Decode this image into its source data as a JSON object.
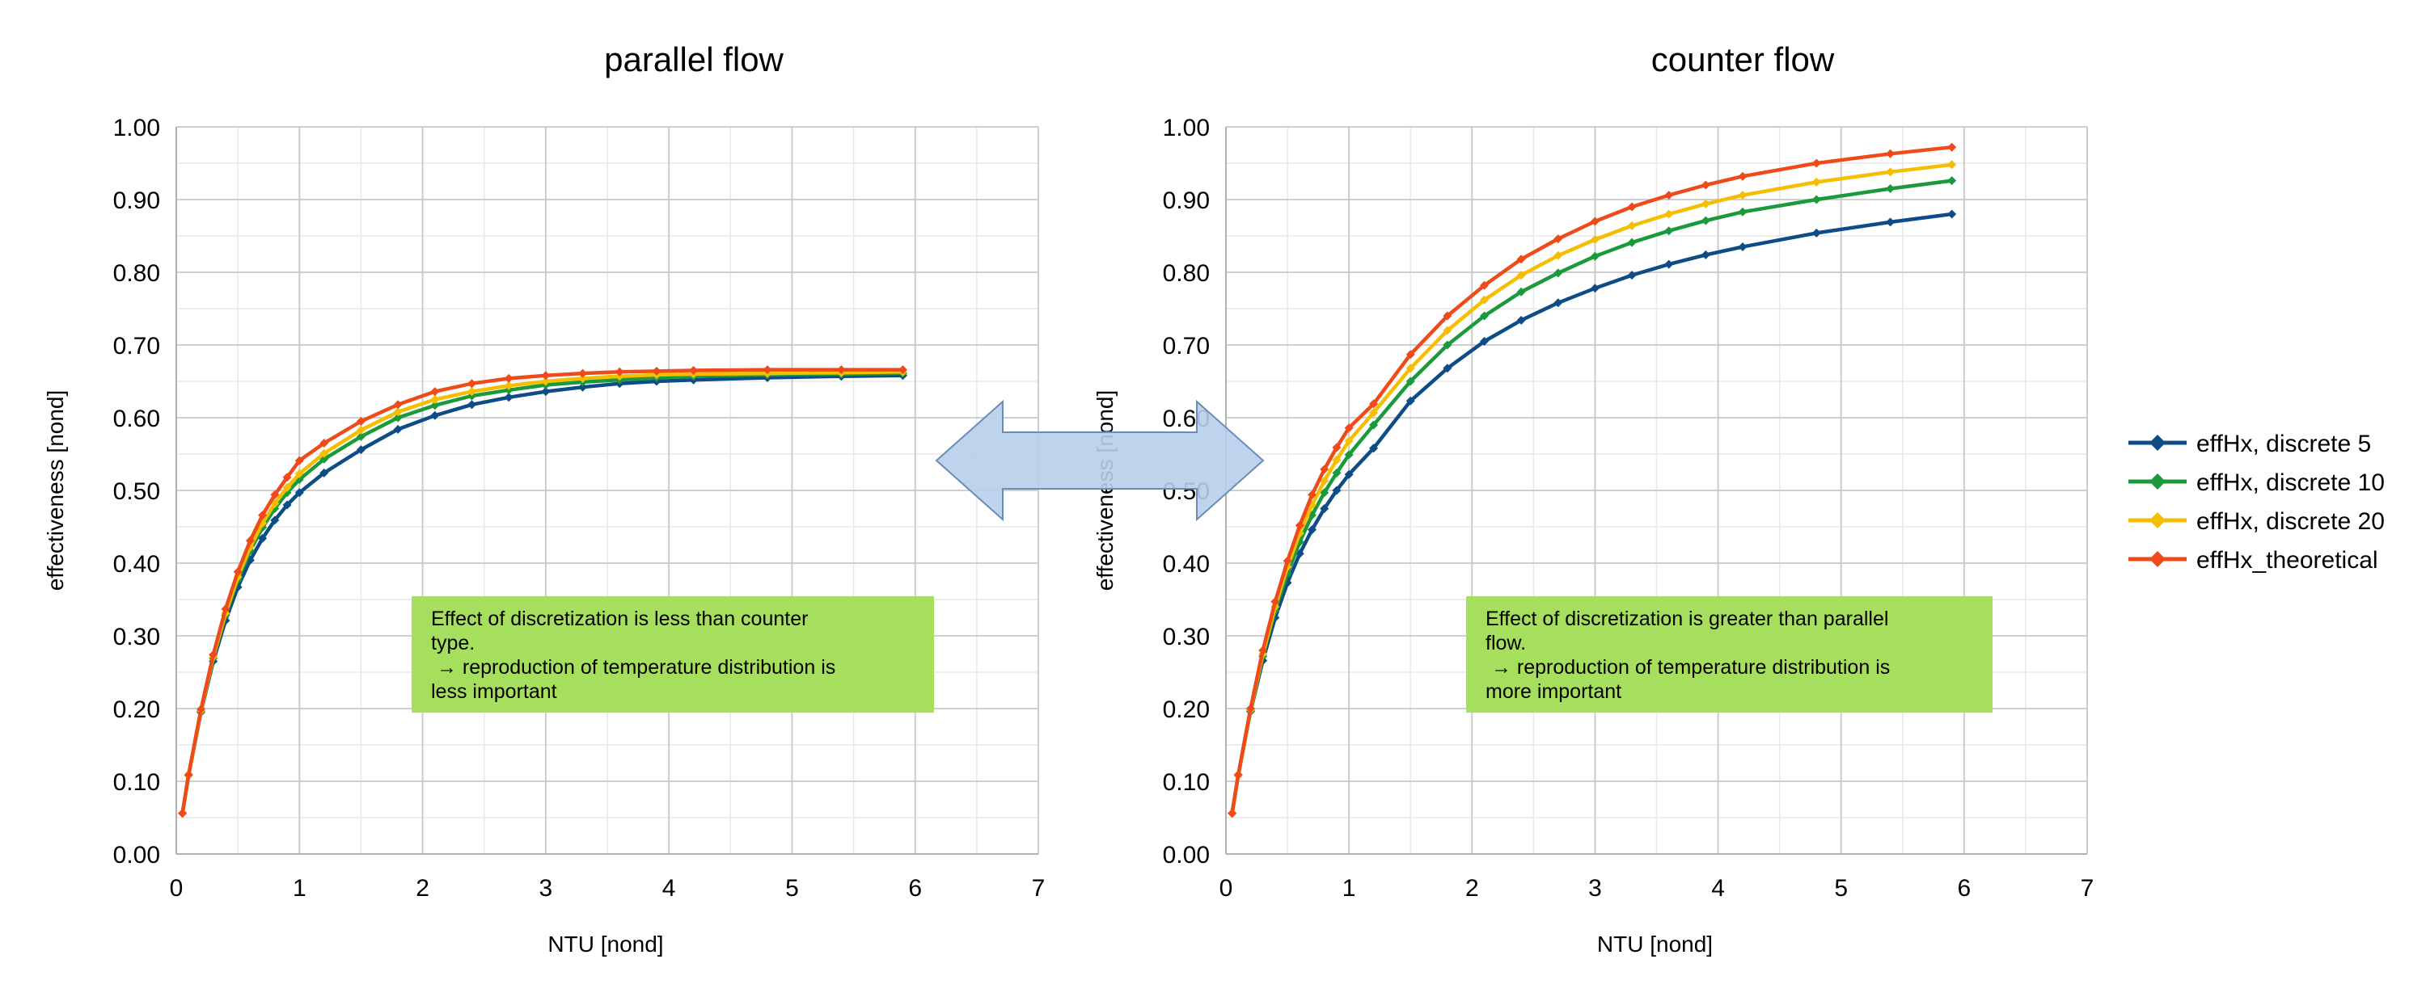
{
  "chart_data": [
    {
      "type": "line",
      "title": "parallel flow",
      "xlabel": "NTU [nond]",
      "ylabel": "effectiveness [nond]",
      "xlim": [
        0,
        7
      ],
      "ylim": [
        0,
        1
      ],
      "x_ticks": [
        "0",
        "1",
        "2",
        "3",
        "4",
        "5",
        "6",
        "7"
      ],
      "y_ticks": [
        "0.00",
        "0.10",
        "0.20",
        "0.30",
        "0.40",
        "0.50",
        "0.60",
        "0.70",
        "0.80",
        "0.90",
        "1.00"
      ],
      "grid": true,
      "annotation": [
        "Effect of discretization is less than counter",
        "type.",
        " → reproduction of temperature distribution is",
        "less important"
      ],
      "series": [
        {
          "name": "effHx, discrete 5",
          "color": "#0E4C87",
          "x": [
            0.05,
            0.1,
            0.2,
            0.3,
            0.4,
            0.5,
            0.6,
            0.7,
            0.8,
            0.9,
            1.0,
            1.2,
            1.5,
            1.8,
            2.1,
            2.4,
            2.7,
            3.0,
            3.3,
            3.6,
            3.9,
            4.2,
            4.8,
            5.4,
            5.9
          ],
          "y": [
            0.056,
            0.108,
            0.195,
            0.265,
            0.321,
            0.367,
            0.404,
            0.434,
            0.459,
            0.48,
            0.497,
            0.524,
            0.556,
            0.584,
            0.603,
            0.618,
            0.628,
            0.636,
            0.642,
            0.647,
            0.65,
            0.652,
            0.655,
            0.657,
            0.658
          ]
        },
        {
          "name": "effHx, discrete 10",
          "color": "#1A9A3A",
          "x": [
            0.05,
            0.1,
            0.2,
            0.3,
            0.4,
            0.5,
            0.6,
            0.7,
            0.8,
            0.9,
            1.0,
            1.2,
            1.5,
            1.8,
            2.1,
            2.4,
            2.7,
            3.0,
            3.3,
            3.6,
            3.9,
            4.2,
            4.8,
            5.4,
            5.9
          ],
          "y": [
            0.056,
            0.108,
            0.196,
            0.269,
            0.328,
            0.377,
            0.417,
            0.449,
            0.475,
            0.497,
            0.515,
            0.543,
            0.574,
            0.6,
            0.617,
            0.63,
            0.638,
            0.645,
            0.649,
            0.652,
            0.655,
            0.657,
            0.659,
            0.66,
            0.661
          ]
        },
        {
          "name": "effHx, discrete 20",
          "color": "#F5BE00",
          "x": [
            0.05,
            0.1,
            0.2,
            0.3,
            0.4,
            0.5,
            0.6,
            0.7,
            0.8,
            0.9,
            1.0,
            1.2,
            1.5,
            1.8,
            2.1,
            2.4,
            2.7,
            3.0,
            3.3,
            3.6,
            3.9,
            4.2,
            4.8,
            5.4,
            5.9
          ],
          "y": [
            0.056,
            0.108,
            0.197,
            0.271,
            0.331,
            0.381,
            0.422,
            0.455,
            0.482,
            0.504,
            0.523,
            0.551,
            0.583,
            0.608,
            0.625,
            0.636,
            0.644,
            0.65,
            0.654,
            0.657,
            0.659,
            0.66,
            0.661,
            0.662,
            0.663
          ]
        },
        {
          "name": "effHx_theoretical",
          "color": "#EE4A1A",
          "x": [
            0.05,
            0.1,
            0.2,
            0.3,
            0.4,
            0.5,
            0.6,
            0.7,
            0.8,
            0.9,
            1.0,
            1.2,
            1.5,
            1.8,
            2.1,
            2.4,
            2.7,
            3.0,
            3.3,
            3.6,
            3.9,
            4.2,
            4.8,
            5.4,
            5.9
          ],
          "y": [
            0.056,
            0.109,
            0.199,
            0.274,
            0.337,
            0.388,
            0.431,
            0.466,
            0.494,
            0.518,
            0.541,
            0.565,
            0.595,
            0.618,
            0.636,
            0.647,
            0.654,
            0.658,
            0.661,
            0.663,
            0.664,
            0.665,
            0.666,
            0.666,
            0.666
          ]
        }
      ]
    },
    {
      "type": "line",
      "title": "counter flow",
      "xlabel": "NTU [nond]",
      "ylabel": "effectiveness [nond]",
      "xlim": [
        0,
        7
      ],
      "ylim": [
        0,
        1
      ],
      "x_ticks": [
        "0",
        "1",
        "2",
        "3",
        "4",
        "5",
        "6",
        "7"
      ],
      "y_ticks": [
        "0.00",
        "0.10",
        "0.20",
        "0.30",
        "0.40",
        "0.50",
        "0.60",
        "0.70",
        "0.80",
        "0.90",
        "1.00"
      ],
      "grid": true,
      "annotation": [
        "Effect of discretization is greater than parallel",
        "flow.",
        " → reproduction of temperature distribution is",
        "more important"
      ],
      "series": [
        {
          "name": "effHx, discrete 5",
          "color": "#0E4C87",
          "x": [
            0.05,
            0.1,
            0.2,
            0.3,
            0.4,
            0.5,
            0.6,
            0.7,
            0.8,
            0.9,
            1.0,
            1.2,
            1.5,
            1.8,
            2.1,
            2.4,
            2.7,
            3.0,
            3.3,
            3.6,
            3.9,
            4.2,
            4.8,
            5.4,
            5.9
          ],
          "y": [
            0.056,
            0.108,
            0.196,
            0.266,
            0.325,
            0.373,
            0.413,
            0.446,
            0.475,
            0.5,
            0.522,
            0.558,
            0.623,
            0.668,
            0.705,
            0.734,
            0.758,
            0.778,
            0.796,
            0.811,
            0.824,
            0.835,
            0.854,
            0.869,
            0.88
          ]
        },
        {
          "name": "effHx, discrete 10",
          "color": "#1A9A3A",
          "x": [
            0.05,
            0.1,
            0.2,
            0.3,
            0.4,
            0.5,
            0.6,
            0.7,
            0.8,
            0.9,
            1.0,
            1.2,
            1.5,
            1.8,
            2.1,
            2.4,
            2.7,
            3.0,
            3.3,
            3.6,
            3.9,
            4.2,
            4.8,
            5.4,
            5.9
          ],
          "y": [
            0.056,
            0.108,
            0.197,
            0.272,
            0.335,
            0.386,
            0.429,
            0.466,
            0.497,
            0.524,
            0.549,
            0.59,
            0.65,
            0.7,
            0.74,
            0.773,
            0.799,
            0.822,
            0.841,
            0.857,
            0.871,
            0.883,
            0.9,
            0.915,
            0.926
          ]
        },
        {
          "name": "effHx, discrete 20",
          "color": "#F5BE00",
          "x": [
            0.05,
            0.1,
            0.2,
            0.3,
            0.4,
            0.5,
            0.6,
            0.7,
            0.8,
            0.9,
            1.0,
            1.2,
            1.5,
            1.8,
            2.1,
            2.4,
            2.7,
            3.0,
            3.3,
            3.6,
            3.9,
            4.2,
            4.8,
            5.4,
            5.9
          ],
          "y": [
            0.056,
            0.108,
            0.198,
            0.275,
            0.34,
            0.395,
            0.441,
            0.48,
            0.513,
            0.542,
            0.568,
            0.607,
            0.668,
            0.72,
            0.762,
            0.796,
            0.823,
            0.845,
            0.864,
            0.88,
            0.894,
            0.906,
            0.924,
            0.938,
            0.948
          ]
        },
        {
          "name": "effHx_theoretical",
          "color": "#EE4A1A",
          "x": [
            0.05,
            0.1,
            0.2,
            0.3,
            0.4,
            0.5,
            0.6,
            0.7,
            0.8,
            0.9,
            1.0,
            1.2,
            1.5,
            1.8,
            2.1,
            2.4,
            2.7,
            3.0,
            3.3,
            3.6,
            3.9,
            4.2,
            4.8,
            5.4,
            5.9
          ],
          "y": [
            0.056,
            0.109,
            0.2,
            0.28,
            0.347,
            0.403,
            0.452,
            0.494,
            0.529,
            0.559,
            0.586,
            0.619,
            0.687,
            0.74,
            0.782,
            0.818,
            0.846,
            0.87,
            0.89,
            0.906,
            0.92,
            0.932,
            0.95,
            0.963,
            0.972
          ]
        }
      ]
    }
  ],
  "legend": {
    "placement": "right",
    "items": [
      {
        "label": "effHx, discrete 5",
        "color": "#0E4C87"
      },
      {
        "label": "effHx, discrete 10",
        "color": "#1A9A3A"
      },
      {
        "label": "effHx, discrete 20",
        "color": "#F5BE00"
      },
      {
        "label": "effHx_theoretical",
        "color": "#EE4A1A"
      }
    ]
  },
  "colors": {
    "annotation_fill": "#A6DE5E",
    "arrow_fill": "#B7CFEA",
    "arrow_stroke": "#6A8DB8",
    "grid_major": "#C8C8C8",
    "grid_minor": "#E8E8E8"
  },
  "decorations": {
    "double_arrow_icon": "left-right-arrow-icon"
  }
}
